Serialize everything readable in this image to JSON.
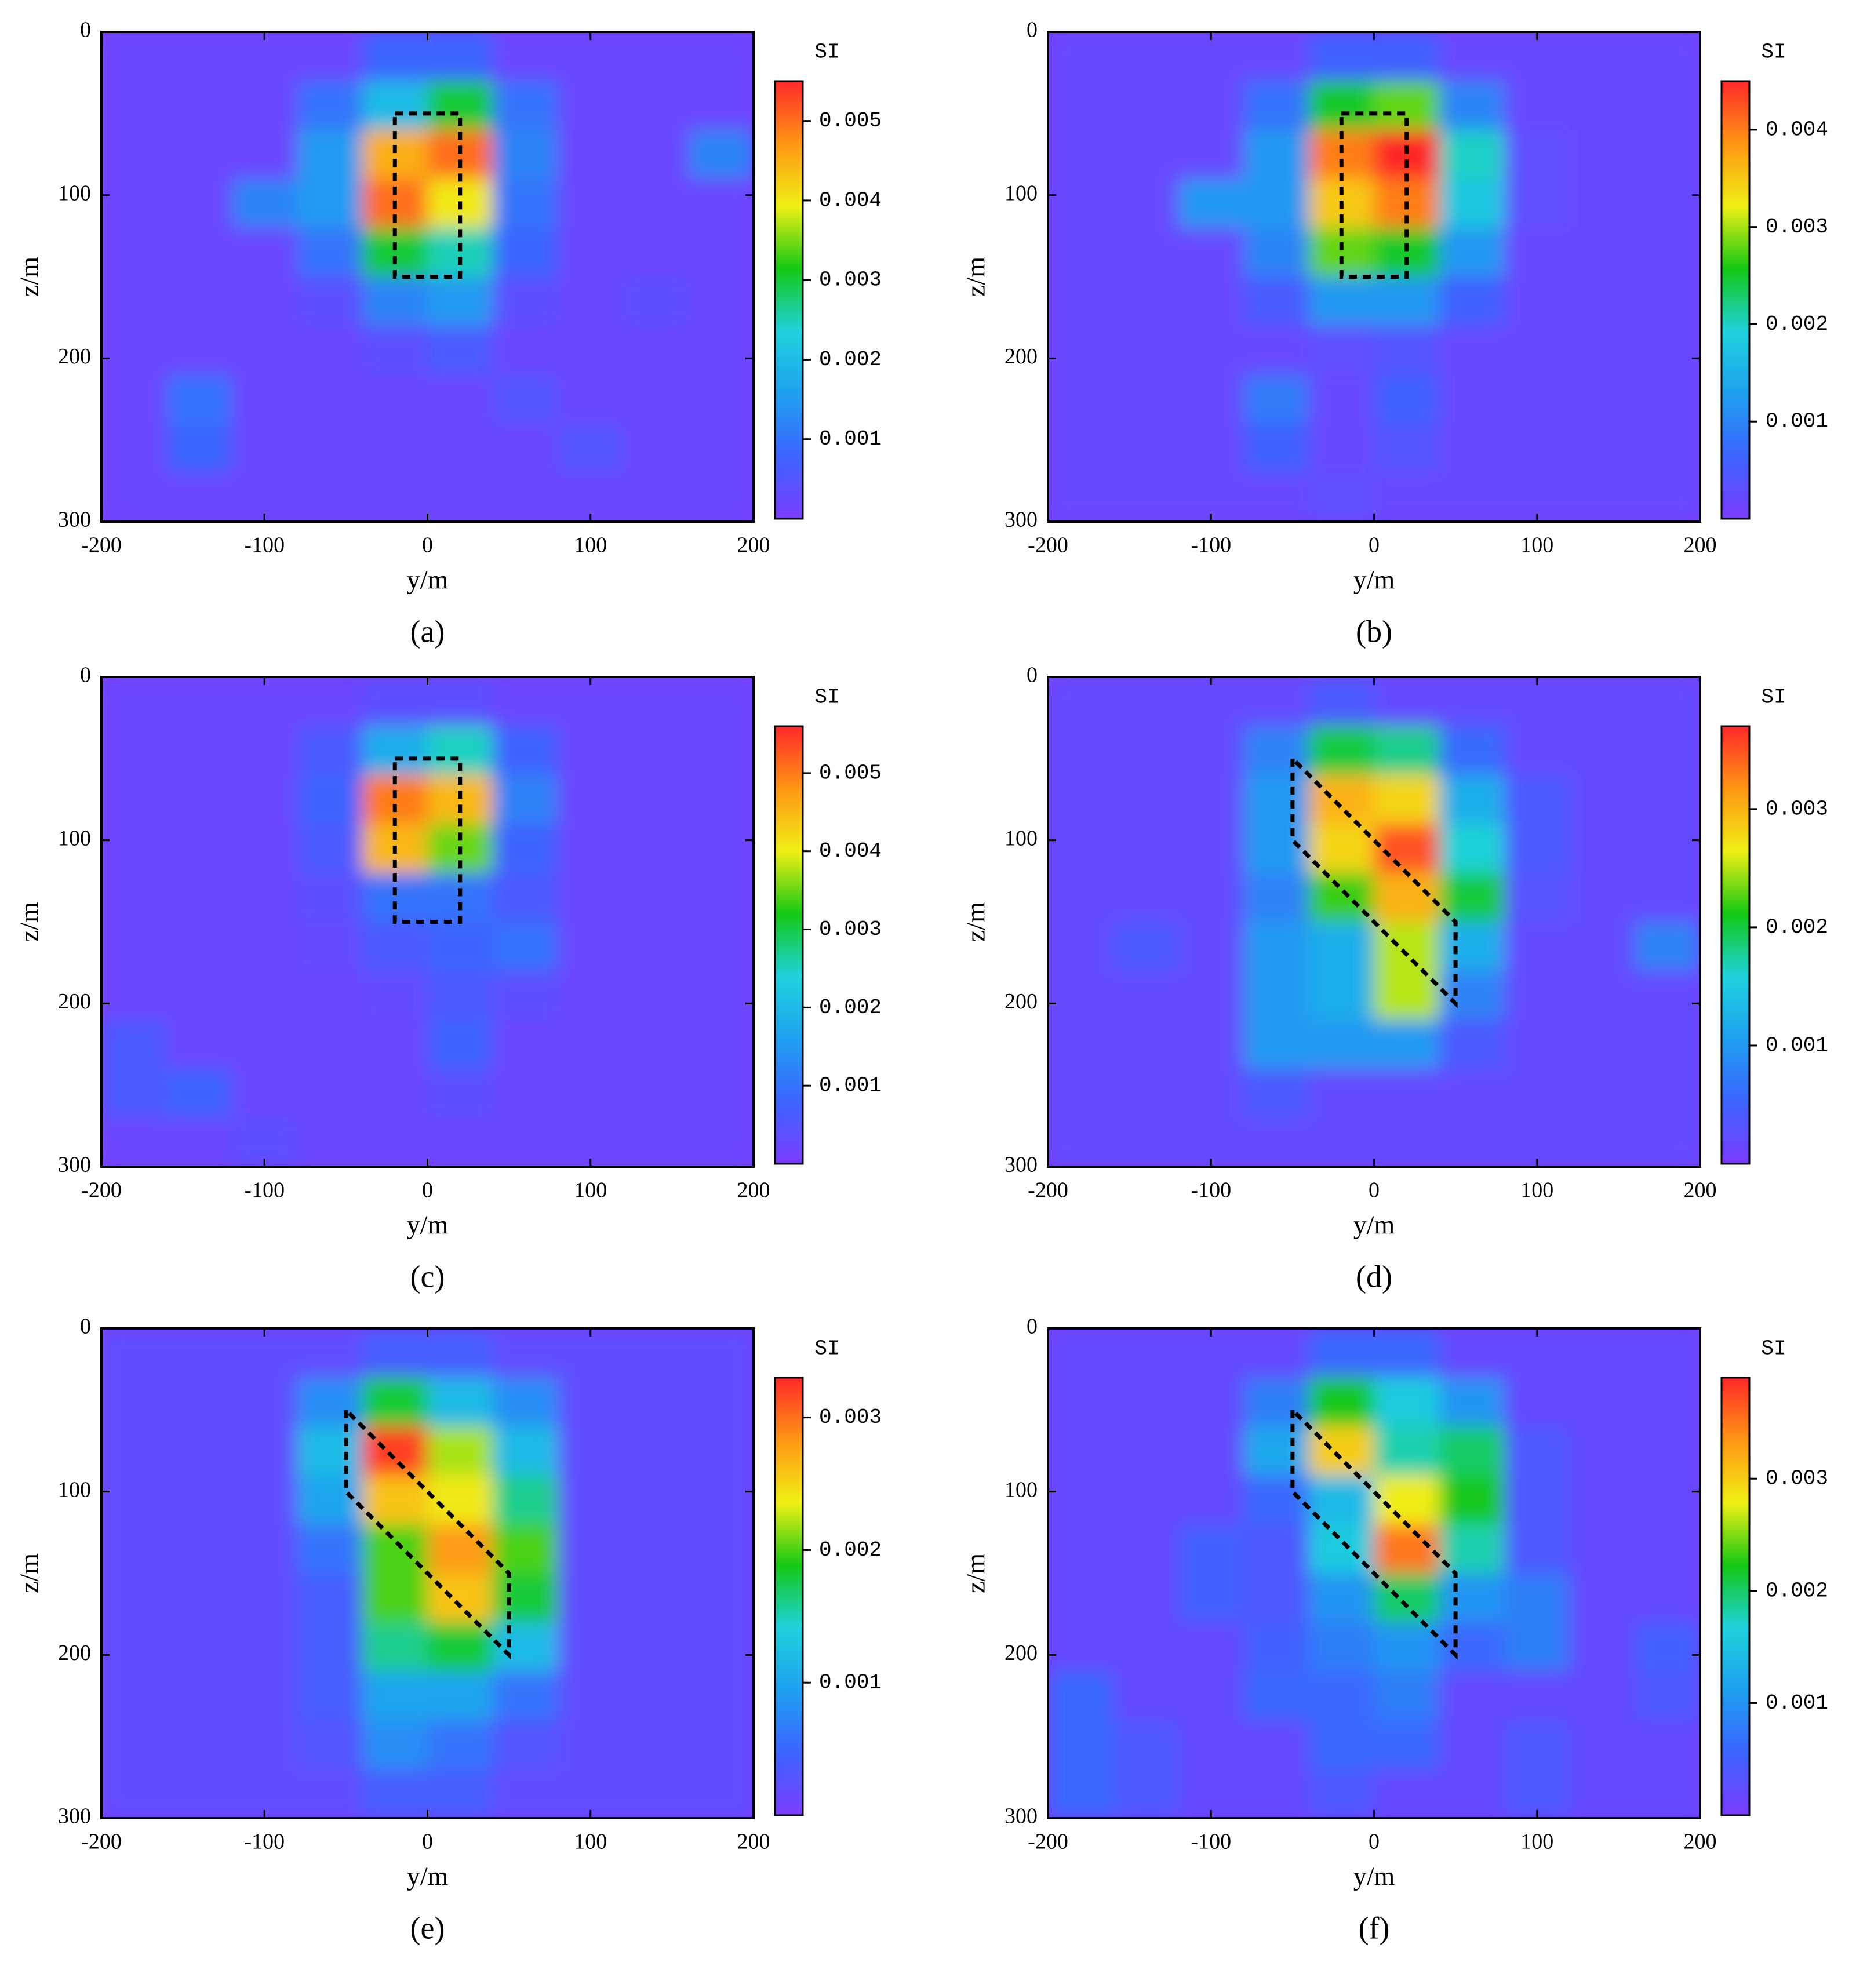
{
  "chart_data": [
    {
      "type": "heatmap",
      "caption": "(a)",
      "xlabel": "y/m",
      "ylabel": "z/m",
      "colorbar_label": "SI",
      "xlim": [
        -200,
        200
      ],
      "xticks": [
        -200,
        -100,
        0,
        100,
        200
      ],
      "ylim": [
        0,
        300
      ],
      "yticks": [
        0,
        100,
        200,
        300
      ],
      "y_reversed": true,
      "zlim": [
        0,
        0.0055
      ],
      "zticks": [
        0.001,
        0.002,
        0.003,
        0.004,
        0.005
      ],
      "colormap": [
        "#7b3cff",
        "#3c64ff",
        "#1ea0f0",
        "#1ed2dc",
        "#14c814",
        "#f0f014",
        "#ff9614",
        "#ff2828"
      ],
      "xbins": [
        -200,
        -160,
        -120,
        -80,
        -40,
        0,
        40,
        80,
        120,
        160,
        200
      ],
      "ybins": [
        0,
        30,
        60,
        90,
        120,
        150,
        180,
        210,
        240,
        270,
        300
      ],
      "values": [
        [
          0.0002,
          0.0002,
          0.0002,
          0.0002,
          0.0008,
          0.0008,
          0.0002,
          0.0002,
          0.0002,
          0.0002
        ],
        [
          0.0002,
          0.0002,
          0.0002,
          0.001,
          0.002,
          0.003,
          0.001,
          0.0002,
          0.0002,
          0.0002
        ],
        [
          0.0002,
          0.0002,
          0.0002,
          0.0015,
          0.0045,
          0.005,
          0.0012,
          0.0002,
          0.0002,
          0.0012
        ],
        [
          0.0002,
          0.0002,
          0.0012,
          0.0015,
          0.005,
          0.004,
          0.001,
          0.0002,
          0.0002,
          0.0002
        ],
        [
          0.0002,
          0.0002,
          0.0002,
          0.001,
          0.003,
          0.0025,
          0.0008,
          0.0002,
          0.0002,
          0.0002
        ],
        [
          0.0002,
          0.0002,
          0.0002,
          0.0004,
          0.0012,
          0.0015,
          0.0004,
          0.0002,
          0.0004,
          0.0002
        ],
        [
          0.0002,
          0.0002,
          0.0002,
          0.0002,
          0.0004,
          0.0006,
          0.0002,
          0.0002,
          0.0002,
          0.0002
        ],
        [
          0.0002,
          0.001,
          0.0002,
          0.0002,
          0.0002,
          0.0002,
          0.0005,
          0.0002,
          0.0002,
          0.0002
        ],
        [
          0.0002,
          0.0008,
          0.0002,
          0.0002,
          0.0002,
          0.0002,
          0.0002,
          0.0005,
          0.0002,
          0.0002
        ],
        [
          0.0002,
          0.0002,
          0.0002,
          0.0002,
          0.0002,
          0.0002,
          0.0002,
          0.0002,
          0.0002,
          0.0002
        ]
      ],
      "outline": {
        "y": [
          -20,
          20,
          20,
          -20
        ],
        "z": [
          50,
          50,
          150,
          150
        ]
      }
    },
    {
      "type": "heatmap",
      "caption": "(b)",
      "xlabel": "y/m",
      "ylabel": "z/m",
      "colorbar_label": "SI",
      "xlim": [
        -200,
        200
      ],
      "xticks": [
        -200,
        -100,
        0,
        100,
        200
      ],
      "ylim": [
        0,
        300
      ],
      "yticks": [
        0,
        100,
        200,
        300
      ],
      "y_reversed": true,
      "zlim": [
        0,
        0.0045
      ],
      "zticks": [
        0.001,
        0.002,
        0.003,
        0.004
      ],
      "colormap": [
        "#7b3cff",
        "#3c64ff",
        "#1ea0f0",
        "#1ed2dc",
        "#14c814",
        "#f0f014",
        "#ff9614",
        "#ff2828"
      ],
      "xbins": [
        -200,
        -160,
        -120,
        -80,
        -40,
        0,
        40,
        80,
        120,
        160,
        200
      ],
      "ybins": [
        0,
        30,
        60,
        90,
        120,
        150,
        180,
        210,
        240,
        270,
        300
      ],
      "values": [
        [
          0.0002,
          0.0002,
          0.0002,
          0.0002,
          0.0006,
          0.0006,
          0.0002,
          0.0002,
          0.0002,
          0.0002
        ],
        [
          0.0002,
          0.0002,
          0.0002,
          0.0008,
          0.0025,
          0.0028,
          0.001,
          0.0002,
          0.0002,
          0.0002
        ],
        [
          0.0002,
          0.0002,
          0.0002,
          0.0012,
          0.004,
          0.0045,
          0.002,
          0.0003,
          0.0002,
          0.0002
        ],
        [
          0.0002,
          0.0002,
          0.0012,
          0.0012,
          0.0035,
          0.004,
          0.0018,
          0.0003,
          0.0002,
          0.0002
        ],
        [
          0.0002,
          0.0002,
          0.0002,
          0.001,
          0.0028,
          0.0025,
          0.0012,
          0.0002,
          0.0002,
          0.0002
        ],
        [
          0.0002,
          0.0002,
          0.0002,
          0.0005,
          0.0012,
          0.0012,
          0.0006,
          0.0002,
          0.0002,
          0.0002
        ],
        [
          0.0002,
          0.0002,
          0.0002,
          0.0002,
          0.0003,
          0.0004,
          0.0002,
          0.0002,
          0.0002,
          0.0002
        ],
        [
          0.0002,
          0.0002,
          0.0002,
          0.0009,
          0.0002,
          0.0006,
          0.0002,
          0.0002,
          0.0002,
          0.0002
        ],
        [
          0.0002,
          0.0002,
          0.0002,
          0.0006,
          0.0002,
          0.0004,
          0.0002,
          0.0002,
          0.0002,
          0.0002
        ],
        [
          0.0002,
          0.0002,
          0.0002,
          0.0002,
          0.0003,
          0.0002,
          0.0002,
          0.0002,
          0.0002,
          0.0002
        ]
      ],
      "outline": {
        "y": [
          -20,
          20,
          20,
          -20
        ],
        "z": [
          50,
          50,
          150,
          150
        ]
      }
    },
    {
      "type": "heatmap",
      "caption": "(c)",
      "xlabel": "y/m",
      "ylabel": "z/m",
      "colorbar_label": "SI",
      "xlim": [
        -200,
        200
      ],
      "xticks": [
        -200,
        -100,
        0,
        100,
        200
      ],
      "ylim": [
        0,
        300
      ],
      "yticks": [
        0,
        100,
        200,
        300
      ],
      "y_reversed": true,
      "zlim": [
        0,
        0.0056
      ],
      "zticks": [
        0.001,
        0.002,
        0.003,
        0.004,
        0.005
      ],
      "colormap": [
        "#7b3cff",
        "#3c64ff",
        "#1ea0f0",
        "#1ed2dc",
        "#14c814",
        "#f0f014",
        "#ff9614",
        "#ff2828"
      ],
      "xbins": [
        -200,
        -160,
        -120,
        -80,
        -40,
        0,
        40,
        80,
        120,
        160,
        200
      ],
      "ybins": [
        0,
        30,
        60,
        90,
        120,
        150,
        180,
        210,
        240,
        270,
        300
      ],
      "values": [
        [
          0.0002,
          0.0002,
          0.0002,
          0.0002,
          0.0004,
          0.0004,
          0.0002,
          0.0002,
          0.0002,
          0.0002
        ],
        [
          0.0002,
          0.0002,
          0.0002,
          0.0006,
          0.0018,
          0.0025,
          0.0008,
          0.0002,
          0.0002,
          0.0002
        ],
        [
          0.0002,
          0.0002,
          0.0002,
          0.0008,
          0.005,
          0.0045,
          0.0012,
          0.0002,
          0.0002,
          0.0002
        ],
        [
          0.0002,
          0.0002,
          0.0002,
          0.0006,
          0.0045,
          0.0035,
          0.0008,
          0.0002,
          0.0002,
          0.0002
        ],
        [
          0.0002,
          0.0002,
          0.0002,
          0.0004,
          0.001,
          0.001,
          0.0006,
          0.0002,
          0.0002,
          0.0002
        ],
        [
          0.0002,
          0.0002,
          0.0002,
          0.0003,
          0.0006,
          0.0008,
          0.001,
          0.0002,
          0.0002,
          0.0002
        ],
        [
          0.0002,
          0.0002,
          0.0002,
          0.0002,
          0.0003,
          0.0006,
          0.0004,
          0.0002,
          0.0002,
          0.0002
        ],
        [
          0.0006,
          0.0002,
          0.0002,
          0.0002,
          0.0002,
          0.0008,
          0.0002,
          0.0002,
          0.0002,
          0.0002
        ],
        [
          0.0006,
          0.0008,
          0.0002,
          0.0002,
          0.0002,
          0.0004,
          0.0002,
          0.0002,
          0.0002,
          0.0002
        ],
        [
          0.0002,
          0.0002,
          0.0004,
          0.0002,
          0.0002,
          0.0002,
          0.0002,
          0.0002,
          0.0002,
          0.0002
        ]
      ],
      "outline": {
        "y": [
          -20,
          20,
          20,
          -20
        ],
        "z": [
          50,
          50,
          150,
          150
        ]
      }
    },
    {
      "type": "heatmap",
      "caption": "(d)",
      "xlabel": "y/m",
      "ylabel": "z/m",
      "colorbar_label": "SI",
      "xlim": [
        -200,
        200
      ],
      "xticks": [
        -200,
        -100,
        0,
        100,
        200
      ],
      "ylim": [
        0,
        300
      ],
      "yticks": [
        0,
        100,
        200,
        300
      ],
      "y_reversed": true,
      "zlim": [
        0,
        0.0037
      ],
      "zticks": [
        0.001,
        0.002,
        0.003
      ],
      "colormap": [
        "#7b3cff",
        "#3c64ff",
        "#1ea0f0",
        "#1ed2dc",
        "#14c814",
        "#f0f014",
        "#ff9614",
        "#ff2828"
      ],
      "xbins": [
        -200,
        -160,
        -120,
        -80,
        -40,
        0,
        40,
        80,
        120,
        160,
        200
      ],
      "ybins": [
        0,
        30,
        60,
        90,
        120,
        150,
        180,
        210,
        240,
        270,
        300
      ],
      "values": [
        [
          0.0002,
          0.0002,
          0.0002,
          0.0002,
          0.0004,
          0.0002,
          0.0002,
          0.0002,
          0.0002,
          0.0002
        ],
        [
          0.0002,
          0.0002,
          0.0002,
          0.0008,
          0.002,
          0.0018,
          0.0006,
          0.0002,
          0.0002,
          0.0002
        ],
        [
          0.0002,
          0.0002,
          0.0002,
          0.001,
          0.003,
          0.0028,
          0.0012,
          0.0004,
          0.0002,
          0.0002
        ],
        [
          0.0002,
          0.0002,
          0.0002,
          0.001,
          0.0028,
          0.0035,
          0.0016,
          0.0004,
          0.0002,
          0.0002
        ],
        [
          0.0002,
          0.0002,
          0.0002,
          0.0008,
          0.0022,
          0.003,
          0.002,
          0.0003,
          0.0002,
          0.0002
        ],
        [
          0.0002,
          0.0004,
          0.0002,
          0.001,
          0.0012,
          0.0025,
          0.0012,
          0.0002,
          0.0002,
          0.0008
        ],
        [
          0.0002,
          0.0002,
          0.0002,
          0.001,
          0.0012,
          0.0025,
          0.0008,
          0.0002,
          0.0002,
          0.0002
        ],
        [
          0.0002,
          0.0002,
          0.0002,
          0.001,
          0.001,
          0.001,
          0.0004,
          0.0002,
          0.0002,
          0.0002
        ],
        [
          0.0002,
          0.0002,
          0.0002,
          0.0004,
          0.0002,
          0.0002,
          0.0002,
          0.0002,
          0.0002,
          0.0002
        ],
        [
          0.0002,
          0.0002,
          0.0002,
          0.0002,
          0.0002,
          0.0002,
          0.0002,
          0.0002,
          0.0002,
          0.0002
        ]
      ],
      "outline": {
        "y": [
          -50,
          -50,
          50,
          50
        ],
        "z": [
          50,
          100,
          200,
          150
        ]
      }
    },
    {
      "type": "heatmap",
      "caption": "(e)",
      "xlabel": "y/m",
      "ylabel": "z/m",
      "colorbar_label": "SI",
      "xlim": [
        -200,
        200
      ],
      "xticks": [
        -200,
        -100,
        0,
        100,
        200
      ],
      "ylim": [
        0,
        300
      ],
      "yticks": [
        0,
        100,
        200,
        300
      ],
      "y_reversed": true,
      "zlim": [
        0,
        0.0033
      ],
      "zticks": [
        0.001,
        0.002,
        0.003
      ],
      "colormap": [
        "#7b3cff",
        "#3c64ff",
        "#1ea0f0",
        "#1ed2dc",
        "#14c814",
        "#f0f014",
        "#ff9614",
        "#ff2828"
      ],
      "xbins": [
        -200,
        -160,
        -120,
        -80,
        -40,
        0,
        40,
        80,
        120,
        160,
        200
      ],
      "ybins": [
        0,
        30,
        60,
        90,
        120,
        150,
        180,
        210,
        240,
        270,
        300
      ],
      "values": [
        [
          0.0002,
          0.0002,
          0.0002,
          0.0002,
          0.0004,
          0.0004,
          0.0002,
          0.0002,
          0.0002,
          0.0002
        ],
        [
          0.0002,
          0.0002,
          0.0002,
          0.0008,
          0.0018,
          0.0012,
          0.0008,
          0.0002,
          0.0002,
          0.0002
        ],
        [
          0.0002,
          0.0002,
          0.0002,
          0.0012,
          0.0032,
          0.0022,
          0.0012,
          0.0002,
          0.0002,
          0.0002
        ],
        [
          0.0002,
          0.0002,
          0.0002,
          0.001,
          0.0026,
          0.0024,
          0.0016,
          0.0002,
          0.0002,
          0.0002
        ],
        [
          0.0002,
          0.0002,
          0.0002,
          0.0006,
          0.002,
          0.0028,
          0.002,
          0.0002,
          0.0002,
          0.0002
        ],
        [
          0.0002,
          0.0002,
          0.0002,
          0.0004,
          0.002,
          0.0026,
          0.0018,
          0.0002,
          0.0002,
          0.0002
        ],
        [
          0.0002,
          0.0002,
          0.0002,
          0.0004,
          0.0016,
          0.0018,
          0.0012,
          0.0002,
          0.0002,
          0.0002
        ],
        [
          0.0002,
          0.0002,
          0.0002,
          0.0004,
          0.001,
          0.001,
          0.0006,
          0.0002,
          0.0002,
          0.0002
        ],
        [
          0.0002,
          0.0002,
          0.0002,
          0.0003,
          0.0008,
          0.0006,
          0.0003,
          0.0002,
          0.0002,
          0.0002
        ],
        [
          0.0002,
          0.0002,
          0.0002,
          0.0002,
          0.0004,
          0.0004,
          0.0002,
          0.0002,
          0.0002,
          0.0002
        ]
      ],
      "outline": {
        "y": [
          -50,
          -50,
          50,
          50
        ],
        "z": [
          50,
          100,
          200,
          150
        ]
      }
    },
    {
      "type": "heatmap",
      "caption": "(f)",
      "xlabel": "y/m",
      "ylabel": "z/m",
      "colorbar_label": "SI",
      "xlim": [
        -200,
        200
      ],
      "xticks": [
        -200,
        -100,
        0,
        100,
        200
      ],
      "ylim": [
        0,
        300
      ],
      "yticks": [
        0,
        100,
        200,
        300
      ],
      "y_reversed": true,
      "zlim": [
        0,
        0.0039
      ],
      "zticks": [
        0.001,
        0.002,
        0.003
      ],
      "colormap": [
        "#7b3cff",
        "#3c64ff",
        "#1ea0f0",
        "#1ed2dc",
        "#14c814",
        "#f0f014",
        "#ff9614",
        "#ff2828"
      ],
      "xbins": [
        -200,
        -160,
        -120,
        -80,
        -40,
        0,
        40,
        80,
        120,
        160,
        200
      ],
      "ybins": [
        0,
        30,
        60,
        90,
        120,
        150,
        180,
        210,
        240,
        270,
        300
      ],
      "values": [
        [
          0.0002,
          0.0002,
          0.0002,
          0.0002,
          0.0006,
          0.0006,
          0.0002,
          0.0002,
          0.0002,
          0.0002
        ],
        [
          0.0002,
          0.0002,
          0.0002,
          0.0008,
          0.0022,
          0.0016,
          0.001,
          0.0002,
          0.0002,
          0.0002
        ],
        [
          0.0002,
          0.0002,
          0.0002,
          0.0012,
          0.003,
          0.0018,
          0.002,
          0.0004,
          0.0002,
          0.0002
        ],
        [
          0.0002,
          0.0002,
          0.0002,
          0.0006,
          0.0014,
          0.0028,
          0.0022,
          0.0004,
          0.0002,
          0.0002
        ],
        [
          0.0002,
          0.0002,
          0.0005,
          0.0004,
          0.0016,
          0.0035,
          0.0018,
          0.0004,
          0.0002,
          0.0002
        ],
        [
          0.0002,
          0.0002,
          0.0005,
          0.0004,
          0.001,
          0.002,
          0.001,
          0.0008,
          0.0002,
          0.0002
        ],
        [
          0.0002,
          0.0002,
          0.0002,
          0.0005,
          0.0008,
          0.001,
          0.0006,
          0.0008,
          0.0002,
          0.0005
        ],
        [
          0.0006,
          0.0002,
          0.0002,
          0.0006,
          0.0006,
          0.0008,
          0.0002,
          0.0002,
          0.0002,
          0.0004
        ],
        [
          0.0006,
          0.0004,
          0.0002,
          0.0002,
          0.0006,
          0.0006,
          0.0002,
          0.0004,
          0.0002,
          0.0002
        ],
        [
          0.0006,
          0.0004,
          0.0002,
          0.0002,
          0.0004,
          0.0002,
          0.0002,
          0.0004,
          0.0002,
          0.0002
        ]
      ],
      "outline": {
        "y": [
          -50,
          -50,
          50,
          50
        ],
        "z": [
          50,
          100,
          200,
          150
        ]
      }
    }
  ]
}
